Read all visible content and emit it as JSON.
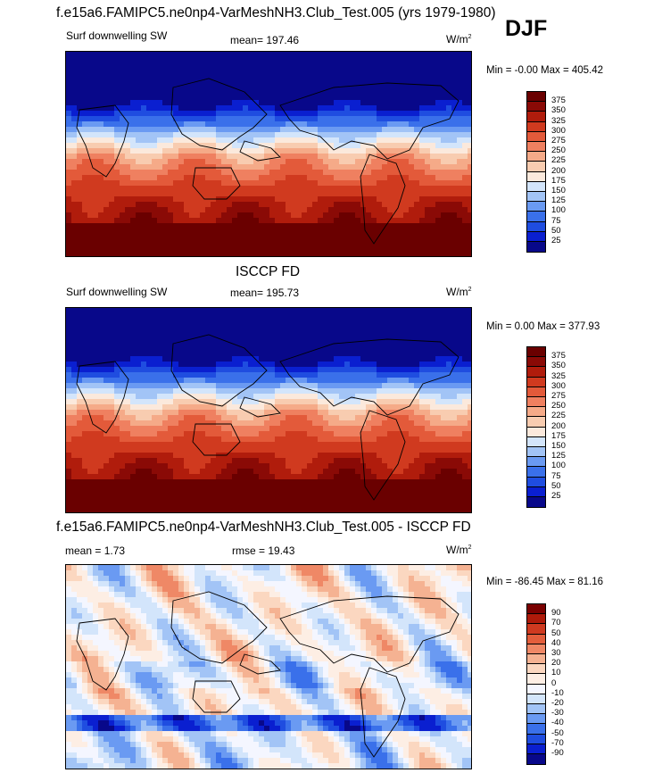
{
  "header": {
    "title": "f.e15a6.FAMIPC5.ne0np4-VarMeshNH3.Club_Test.005 (yrs 1979-1980)",
    "season": "DJF"
  },
  "panels": [
    {
      "variable": "Surf downwelling SW",
      "mean_label": "mean= 197.46",
      "units": "W/m",
      "units_exp": "2",
      "minmax": "Min =  -0.00 Max = 405.42",
      "palette": "sequential",
      "levels": [
        "375",
        "350",
        "325",
        "300",
        "275",
        "250",
        "225",
        "200",
        "175",
        "150",
        "125",
        "100",
        "75",
        "50",
        "25"
      ]
    },
    {
      "heading": "ISCCP FD",
      "variable": "Surf downwelling SW",
      "mean_label": "mean= 195.73",
      "units": "W/m",
      "units_exp": "2",
      "minmax": "Min =   0.00 Max = 377.93",
      "palette": "sequential",
      "levels": [
        "375",
        "350",
        "325",
        "300",
        "275",
        "250",
        "225",
        "200",
        "175",
        "150",
        "125",
        "100",
        "75",
        "50",
        "25"
      ]
    },
    {
      "heading": "f.e15a6.FAMIPC5.ne0np4-VarMeshNH3.Club_Test.005 - ISCCP FD",
      "mean_label": "mean =   1.73",
      "rmse_label": "rmse =  19.43",
      "units": "W/m",
      "units_exp": "2",
      "minmax": "Min = -86.45 Max =  81.16",
      "palette": "diverging",
      "levels": [
        "90",
        "70",
        "50",
        "40",
        "30",
        "20",
        "10",
        "0",
        "-10",
        "-20",
        "-30",
        "-40",
        "-50",
        "-70",
        "-90"
      ]
    }
  ],
  "colors": {
    "sequential": [
      "#08088a",
      "#0a1fd0",
      "#1f4de0",
      "#3a70ea",
      "#6a9af2",
      "#a2c4f6",
      "#d3e5fb",
      "#fbe9dc",
      "#f8ccb0",
      "#f5aa88",
      "#ef8060",
      "#e35a3a",
      "#d03a1f",
      "#b01c0c",
      "#8a0a06",
      "#6a0000"
    ],
    "diverging": [
      "#08088a",
      "#0a1fd0",
      "#1f4de0",
      "#3a70ea",
      "#6a9af2",
      "#a2c4f6",
      "#d3e5fb",
      "#f4f6ff",
      "#fdeee4",
      "#fbd7c0",
      "#f5b292",
      "#ef8866",
      "#e35e3c",
      "#cf3a20",
      "#ae1a0a",
      "#7a0000"
    ]
  }
}
